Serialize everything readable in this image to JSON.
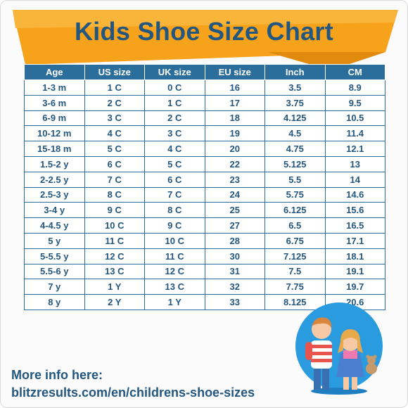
{
  "title": "Kids Shoe Size Chart",
  "colors": {
    "banner": "#f7a21b",
    "title": "#24577f",
    "header": "#2c6e9b"
  },
  "table": {
    "headers": [
      "Age",
      "US size",
      "UK size",
      "EU size",
      "Inch",
      "CM"
    ],
    "rows": [
      [
        "1-3 m",
        "1 C",
        "0 C",
        "16",
        "3.5",
        "8.9"
      ],
      [
        "3-6 m",
        "2 C",
        "1 C",
        "17",
        "3.75",
        "9.5"
      ],
      [
        "6-9 m",
        "3 C",
        "2 C",
        "18",
        "4.125",
        "10.5"
      ],
      [
        "10-12 m",
        "4 C",
        "3 C",
        "19",
        "4.5",
        "11.4"
      ],
      [
        "15-18 m",
        "5 C",
        "4 C",
        "20",
        "4.75",
        "12.1"
      ],
      [
        "1.5-2 y",
        "6 C",
        "5 C",
        "22",
        "5.125",
        "13"
      ],
      [
        "2-2.5 y",
        "7 C",
        "6 C",
        "23",
        "5.5",
        "14"
      ],
      [
        "2.5-3 y",
        "8 C",
        "7 C",
        "24",
        "5.75",
        "14.6"
      ],
      [
        "3-4 y",
        "9 C",
        "8 C",
        "25",
        "6.125",
        "15.6"
      ],
      [
        "4-4.5 y",
        "10 C",
        "9 C",
        "27",
        "6.5",
        "16.5"
      ],
      [
        "5 y",
        "11 C",
        "10 C",
        "28",
        "6.75",
        "17.1"
      ],
      [
        "5-5.5 y",
        "12 C",
        "11 C",
        "30",
        "7.125",
        "18.1"
      ],
      [
        "5.5-6 y",
        "13 C",
        "12 C",
        "31",
        "7.5",
        "19.1"
      ],
      [
        "7 y",
        "1 Y",
        "13 C",
        "32",
        "7.75",
        "19.7"
      ],
      [
        "8 y",
        "2 Y",
        "1 Y",
        "33",
        "8.125",
        "20.6"
      ]
    ]
  },
  "footer": {
    "line1": "More info here:",
    "line2": "blitzresults.com/en/childrens-shoe-sizes"
  },
  "illustration": {
    "icon": "kids-illustration"
  }
}
